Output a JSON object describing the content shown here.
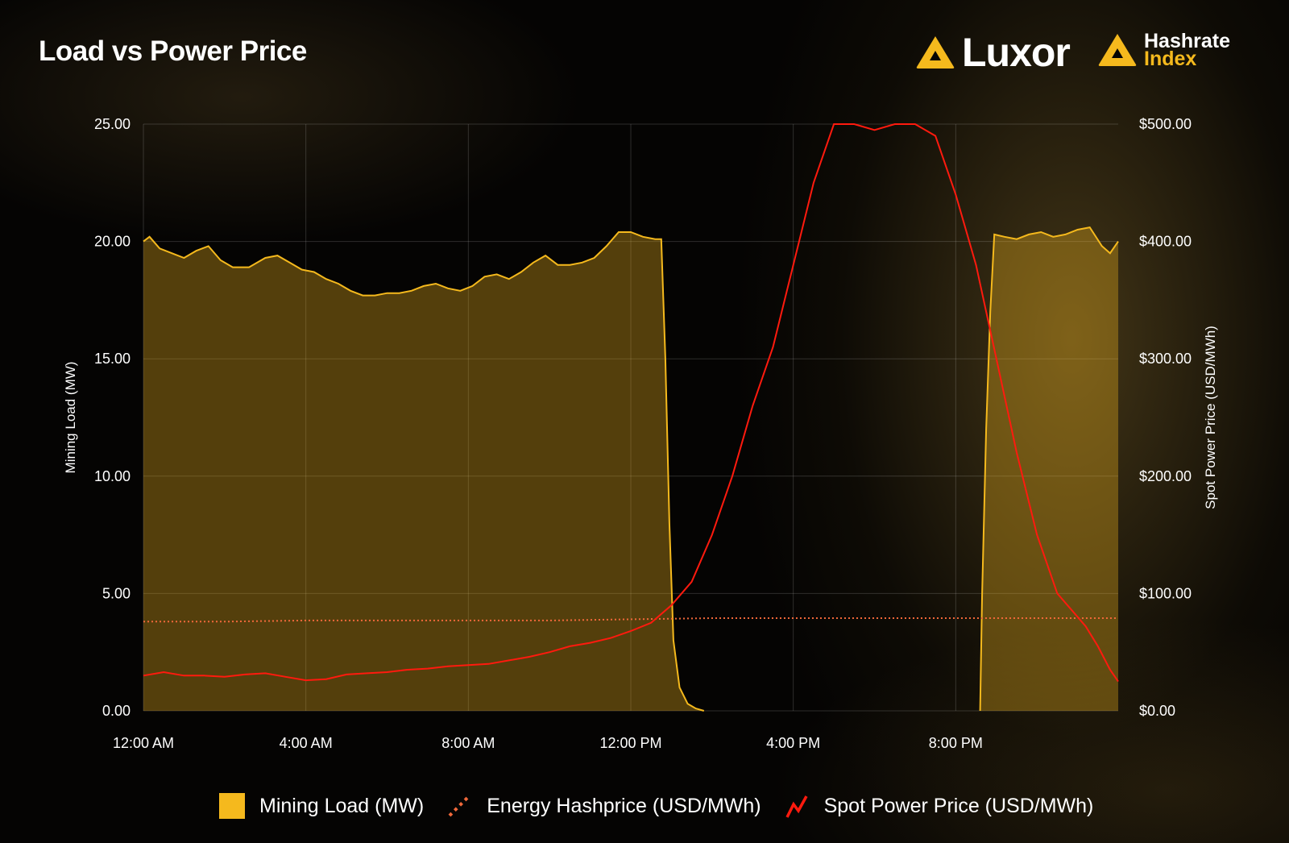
{
  "title": "Load vs Power Price",
  "brand": {
    "luxor": "Luxor",
    "hashrate_line1": "Hashrate",
    "hashrate_line2": "Index",
    "accent": "#f5b91d"
  },
  "colors": {
    "mining_load": "#f5b91d",
    "energy_hashprice": "#f0683a",
    "spot_power_price": "#ff1a0e",
    "background": "#050403"
  },
  "legend": [
    {
      "key": "load",
      "label": "Mining Load (MW)",
      "icon": "filled-square"
    },
    {
      "key": "hashprice",
      "label": "Energy Hashprice (USD/MWh)",
      "icon": "dotted-line"
    },
    {
      "key": "price",
      "label": "Spot Power Price (USD/MWh)",
      "icon": "zigzag-line"
    }
  ],
  "chart_data": {
    "type": "line",
    "xlabel": "",
    "x_unit": "hours after 12:00 AM",
    "x_range": [
      0,
      24
    ],
    "x_ticks": [
      {
        "value": 0,
        "label": "12:00 AM"
      },
      {
        "value": 4,
        "label": "4:00 AM"
      },
      {
        "value": 8,
        "label": "8:00 AM"
      },
      {
        "value": 12,
        "label": "12:00 PM"
      },
      {
        "value": 16,
        "label": "4:00 PM"
      },
      {
        "value": 20,
        "label": "8:00 PM"
      }
    ],
    "y_left": {
      "label": "Mining Load (MW)",
      "range": [
        0,
        25
      ],
      "ticks": [
        "0.00",
        "5.00",
        "10.00",
        "15.00",
        "20.00",
        "25.00"
      ]
    },
    "y_right": {
      "label": "Spot Power Price (USD/MWh)",
      "range": [
        0,
        500
      ],
      "ticks": [
        "$0.00",
        "$100.00",
        "$200.00",
        "$300.00",
        "$400.00",
        "$500.00"
      ]
    },
    "grid": true,
    "legend_position": "bottom",
    "series": [
      {
        "name": "Mining Load (MW)",
        "axis": "left",
        "style": "area",
        "points": [
          [
            0,
            20.0
          ],
          [
            0.15,
            20.2
          ],
          [
            0.4,
            19.7
          ],
          [
            0.7,
            19.5
          ],
          [
            1.0,
            19.3
          ],
          [
            1.3,
            19.6
          ],
          [
            1.6,
            19.8
          ],
          [
            1.9,
            19.2
          ],
          [
            2.2,
            18.9
          ],
          [
            2.6,
            18.9
          ],
          [
            3.0,
            19.3
          ],
          [
            3.3,
            19.4
          ],
          [
            3.6,
            19.1
          ],
          [
            3.9,
            18.8
          ],
          [
            4.2,
            18.7
          ],
          [
            4.5,
            18.4
          ],
          [
            4.8,
            18.2
          ],
          [
            5.1,
            17.9
          ],
          [
            5.4,
            17.7
          ],
          [
            5.7,
            17.7
          ],
          [
            6.0,
            17.8
          ],
          [
            6.3,
            17.8
          ],
          [
            6.6,
            17.9
          ],
          [
            6.9,
            18.1
          ],
          [
            7.2,
            18.2
          ],
          [
            7.5,
            18.0
          ],
          [
            7.8,
            17.9
          ],
          [
            8.1,
            18.1
          ],
          [
            8.4,
            18.5
          ],
          [
            8.7,
            18.6
          ],
          [
            9.0,
            18.4
          ],
          [
            9.3,
            18.7
          ],
          [
            9.6,
            19.1
          ],
          [
            9.9,
            19.4
          ],
          [
            10.2,
            19.0
          ],
          [
            10.5,
            19.0
          ],
          [
            10.8,
            19.1
          ],
          [
            11.1,
            19.3
          ],
          [
            11.4,
            19.8
          ],
          [
            11.7,
            20.4
          ],
          [
            12.0,
            20.4
          ],
          [
            12.3,
            20.2
          ],
          [
            12.6,
            20.1
          ],
          [
            12.75,
            20.1
          ],
          [
            12.85,
            15.0
          ],
          [
            12.95,
            8.0
          ],
          [
            13.05,
            3.0
          ],
          [
            13.2,
            1.0
          ],
          [
            13.4,
            0.3
          ],
          [
            13.6,
            0.1
          ],
          [
            13.8,
            0.0
          ]
        ],
        "gap": [
          13.8,
          20.6
        ],
        "points_after_gap": [
          [
            20.6,
            0.0
          ],
          [
            20.65,
            5.0
          ],
          [
            20.75,
            12.0
          ],
          [
            20.85,
            17.0
          ],
          [
            20.95,
            20.3
          ],
          [
            21.2,
            20.2
          ],
          [
            21.5,
            20.1
          ],
          [
            21.8,
            20.3
          ],
          [
            22.1,
            20.4
          ],
          [
            22.4,
            20.2
          ],
          [
            22.7,
            20.3
          ],
          [
            23.0,
            20.5
          ],
          [
            23.3,
            20.6
          ],
          [
            23.6,
            19.8
          ],
          [
            23.8,
            19.5
          ],
          [
            24.0,
            20.0
          ]
        ]
      },
      {
        "name": "Energy Hashprice (USD/MWh)",
        "axis": "right",
        "style": "dotted",
        "points": [
          [
            0,
            76
          ],
          [
            2,
            76
          ],
          [
            4,
            77
          ],
          [
            6,
            77
          ],
          [
            8,
            77
          ],
          [
            10,
            77
          ],
          [
            12,
            78
          ],
          [
            14,
            79
          ],
          [
            16,
            79
          ],
          [
            18,
            79
          ],
          [
            20,
            79
          ],
          [
            22,
            79
          ],
          [
            24,
            79
          ]
        ]
      },
      {
        "name": "Spot Power Price (USD/MWh)",
        "axis": "right",
        "style": "line",
        "points": [
          [
            0,
            30
          ],
          [
            0.5,
            33
          ],
          [
            1.0,
            30
          ],
          [
            1.5,
            30
          ],
          [
            2.0,
            29
          ],
          [
            2.5,
            31
          ],
          [
            3.0,
            32
          ],
          [
            3.5,
            29
          ],
          [
            4.0,
            26
          ],
          [
            4.5,
            27
          ],
          [
            5.0,
            31
          ],
          [
            5.5,
            32
          ],
          [
            6.0,
            33
          ],
          [
            6.5,
            35
          ],
          [
            7.0,
            36
          ],
          [
            7.5,
            38
          ],
          [
            8.0,
            39
          ],
          [
            8.5,
            40
          ],
          [
            9.0,
            43
          ],
          [
            9.5,
            46
          ],
          [
            10.0,
            50
          ],
          [
            10.5,
            55
          ],
          [
            11.0,
            58
          ],
          [
            11.5,
            62
          ],
          [
            12.0,
            68
          ],
          [
            12.5,
            75
          ],
          [
            13.0,
            90
          ],
          [
            13.5,
            110
          ],
          [
            14.0,
            150
          ],
          [
            14.5,
            200
          ],
          [
            15.0,
            260
          ],
          [
            15.5,
            310
          ],
          [
            16.0,
            380
          ],
          [
            16.5,
            450
          ],
          [
            17.0,
            500
          ],
          [
            17.5,
            500
          ],
          [
            18.0,
            495
          ],
          [
            18.5,
            500
          ],
          [
            19.0,
            500
          ],
          [
            19.5,
            490
          ],
          [
            20.0,
            440
          ],
          [
            20.5,
            380
          ],
          [
            21.0,
            300
          ],
          [
            21.5,
            220
          ],
          [
            22.0,
            150
          ],
          [
            22.5,
            100
          ],
          [
            23.0,
            80
          ],
          [
            23.2,
            72
          ],
          [
            23.5,
            55
          ],
          [
            23.8,
            35
          ],
          [
            24.0,
            25
          ]
        ]
      }
    ]
  }
}
